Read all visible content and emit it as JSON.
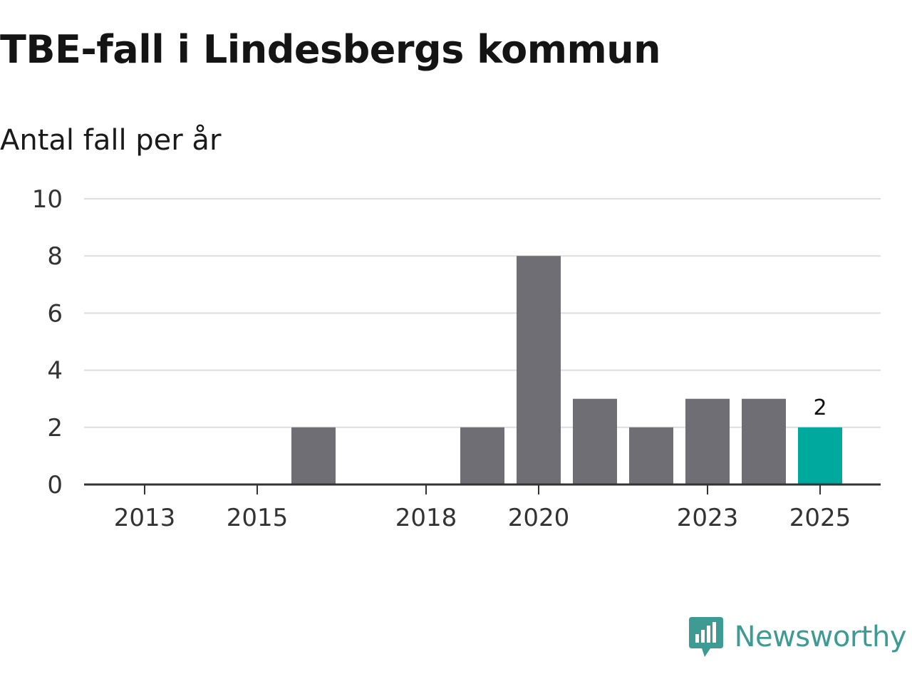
{
  "title": "TBE-fall i Lindesbergs kommun",
  "subtitle": "Antal fall per år",
  "brand": {
    "name": "Newsworthy",
    "logo_icon": "newsworthy-logo-icon"
  },
  "colors": {
    "bar": "#6f6e74",
    "highlight": "#00a99d",
    "gridline": "#dddddd",
    "axis": "#333333",
    "brand": "#3d9b94"
  },
  "chart_data": {
    "type": "bar",
    "title": "TBE-fall i Lindesbergs kommun",
    "subtitle": "Antal fall per år",
    "xlabel": "",
    "ylabel": "Antal fall per år",
    "categories": [
      "2013",
      "2014",
      "2015",
      "2016",
      "2017",
      "2018",
      "2019",
      "2020",
      "2021",
      "2022",
      "2023",
      "2024",
      "2025"
    ],
    "values": [
      0,
      0,
      0,
      2,
      0,
      0,
      2,
      8,
      3,
      2,
      3,
      3,
      2
    ],
    "x_tick_labels": [
      "2013",
      "2015",
      "2018",
      "2020",
      "2023",
      "2025"
    ],
    "y_ticks": [
      0,
      2,
      4,
      6,
      8,
      10
    ],
    "ylim": [
      0,
      10
    ],
    "grid": true,
    "highlight_category": "2025",
    "annotations": [
      {
        "category": "2025",
        "text": "2"
      }
    ]
  }
}
